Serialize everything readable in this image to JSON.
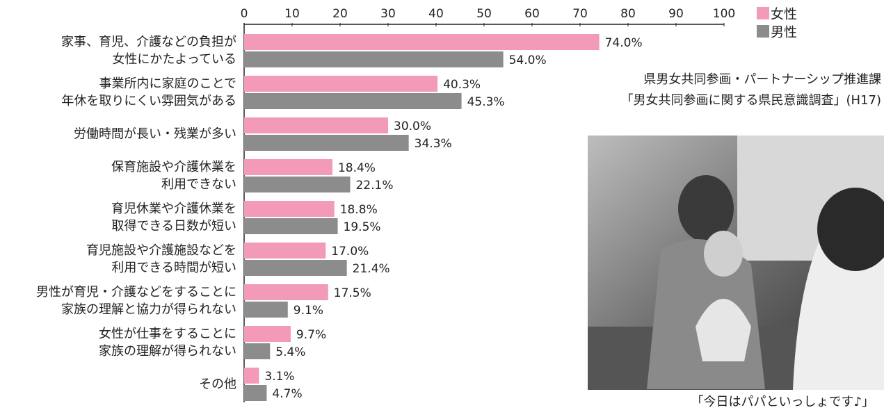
{
  "chart_data": {
    "type": "hbar",
    "categories": [
      "家事、育児、介護などの負担が\n女性にかたよっている",
      "事業所内に家庭のことで\n年休を取りにくい雰囲気がある",
      "労働時間が長い・残業が多い",
      "保育施設や介護休業を\n利用できない",
      "育児休業や介護休業を\n取得できる日数が短い",
      "育児施設や介護施設などを\n利用できる時間が短い",
      "男性が育児・介護などをすることに\n家族の理解と協力が得られない",
      "女性が仕事をすることに\n家族の理解が得られない",
      "その他"
    ],
    "series": [
      {
        "name": "女性",
        "color": "#f29ab8",
        "values": [
          74.0,
          40.3,
          30.0,
          18.4,
          18.8,
          17.0,
          17.5,
          9.7,
          3.1
        ],
        "value_labels": [
          "74.0%",
          "40.3%",
          "30.0%",
          "18.4%",
          "18.8%",
          "17.0%",
          "17.5%",
          "9.7%",
          "3.1%"
        ]
      },
      {
        "name": "男性",
        "color": "#8c8c8c",
        "values": [
          54.0,
          45.3,
          34.3,
          22.1,
          19.5,
          21.4,
          9.1,
          5.4,
          4.7
        ],
        "value_labels": [
          "54.0%",
          "45.3%",
          "34.3%",
          "22.1%",
          "19.5%",
          "21.4%",
          "9.1%",
          "5.4%",
          "4.7%"
        ]
      }
    ],
    "xlim": [
      0,
      100
    ],
    "xticks": [
      0,
      10,
      20,
      30,
      40,
      50,
      60,
      70,
      80,
      90,
      100
    ],
    "source": [
      "県男女共同参画・パートナーシップ推進課",
      "「男女共同参画に関する県民意識調査」(H17)"
    ],
    "photo_caption": "「今日はパパといっしょです♪」"
  }
}
